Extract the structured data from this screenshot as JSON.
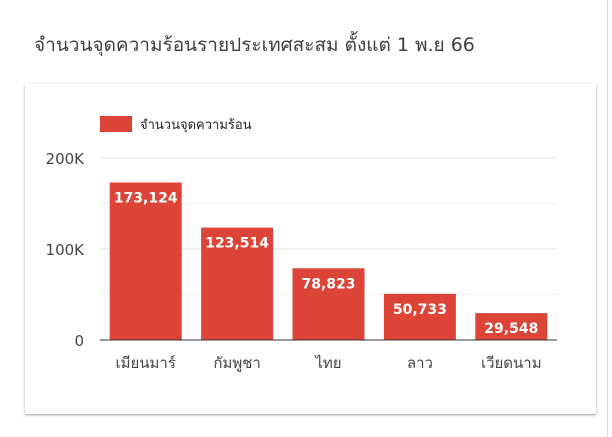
{
  "chart_data": {
    "type": "bar",
    "title": "จำนวนจุดความร้อนรายประเทศสะสม ตั้งแต่ 1 พ.ย 66",
    "categories": [
      "เมียนมาร์",
      "กัมพูชา",
      "ไทย",
      "ลาว",
      "เวียดนาม"
    ],
    "series": [
      {
        "name": "จำนวนจุดความร้อน",
        "values": [
          173124,
          123514,
          78823,
          50733,
          29548
        ],
        "labels": [
          "173,124",
          "123,514",
          "78,823",
          "50,733",
          "29,548"
        ],
        "color": "#db4437"
      }
    ],
    "y_ticks": [
      "0",
      "100K",
      "200K"
    ],
    "y_tick_values": [
      0,
      100000,
      200000
    ],
    "ylim": [
      0,
      200000
    ],
    "grid": true,
    "legend": "top-left",
    "colors": {
      "bar": "#db4437",
      "grid": "#e0e0e0",
      "axis": "#333333",
      "tick_text": "#444444",
      "data_label": "#ffffff"
    }
  }
}
